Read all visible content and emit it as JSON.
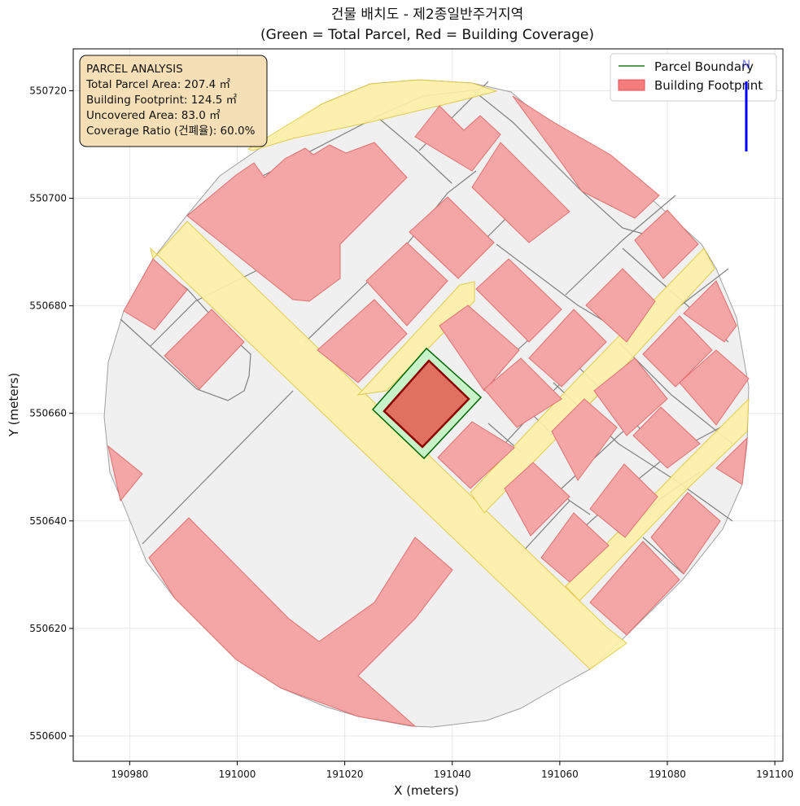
{
  "title_line1": "건물 배치도 - 제2종일반주거지역",
  "title_line2": "(Green = Total Parcel, Red = Building Coverage)",
  "xlabel": "X (meters)",
  "ylabel": "Y (meters)",
  "x_ticks": [
    190980,
    191000,
    191020,
    191040,
    191060,
    191080,
    191100
  ],
  "y_ticks": [
    550600,
    550620,
    550640,
    550660,
    550680,
    550700,
    550720
  ],
  "x_range": [
    190969.5,
    191101.5
  ],
  "y_range": [
    550595.3,
    550727.8
  ],
  "legend": {
    "parcel_label": "Parcel Boundary",
    "footprint_label": "Building Footprint",
    "parcel_color": "#1a7f1a",
    "footprint_color": "#f47c7c"
  },
  "info_box": {
    "heading": "PARCEL ANALYSIS",
    "line1": "Total Parcel Area: 207.4 ㎡",
    "line2": "Building Footprint: 124.5 ㎡",
    "line3": "Uncovered Area: 83.0 ㎡",
    "line4": "Coverage Ratio (건폐율): 60.0%"
  },
  "north_arrow": {
    "label": "N",
    "color": "#0000ff"
  },
  "colors": {
    "context_fill": "#f0f0f0",
    "context_stroke": "#808080",
    "road_fill": "#fff1a8",
    "road_stroke": "#e0c840",
    "building_fill": "#f4a6a6",
    "building_stroke": "#e07070",
    "parcel_fill": "#c8f2c8",
    "parcel_stroke": "#006400",
    "target_building_fill": "#e07060",
    "target_building_stroke": "#8b0000",
    "info_bg": "#f5deb3"
  },
  "chart_data": {
    "type": "map",
    "parcel_boundary": [
      [
        191025.8,
        550660.8
      ],
      [
        191035.8,
        550672.2
      ],
      [
        191045.8,
        550663.2
      ],
      [
        191035.3,
        550651.3
      ]
    ],
    "building_footprint": [
      [
        191027.4,
        550660.6
      ],
      [
        191035.8,
        550669.7
      ],
      [
        191043.6,
        550662.6
      ],
      [
        191035.2,
        550653.9
      ]
    ],
    "study_area_outline": [
      [
        190982.4,
        550689.3
      ],
      [
        190990.5,
        550696.1
      ],
      [
        191000.3,
        550704.7
      ],
      [
        191008.3,
        550707.9
      ],
      [
        191019.7,
        550715.9
      ],
      [
        191033.5,
        550719.1
      ],
      [
        191043.1,
        550718.9
      ],
      [
        191055.0,
        550716.5
      ],
      [
        191064.5,
        550714.0
      ],
      [
        191073.2,
        550706.9
      ],
      [
        191084.5,
        550697.6
      ],
      [
        191089.3,
        550690.7
      ],
      [
        191093.3,
        550684.1
      ],
      [
        191096.5,
        550672.1
      ],
      [
        191095.3,
        550658.4
      ],
      [
        191093.6,
        550645.4
      ],
      [
        191084.1,
        550632.5
      ],
      [
        191070.8,
        550623.2
      ],
      [
        191064.3,
        550615.3
      ],
      [
        191052.8,
        550609.5
      ],
      [
        191038.0,
        550606.0
      ],
      [
        191031.7,
        550605.6
      ],
      [
        191018.8,
        550607.2
      ],
      [
        191006.8,
        550611.2
      ],
      [
        190996.2,
        550615.2
      ],
      [
        190986.5,
        550624.7
      ],
      [
        190982.1,
        550634.1
      ],
      [
        190976.1,
        550644.4
      ],
      [
        190975.8,
        550658.2
      ],
      [
        190977.4,
        550670.7
      ],
      [
        190979.2,
        550681.2
      ]
    ]
  }
}
